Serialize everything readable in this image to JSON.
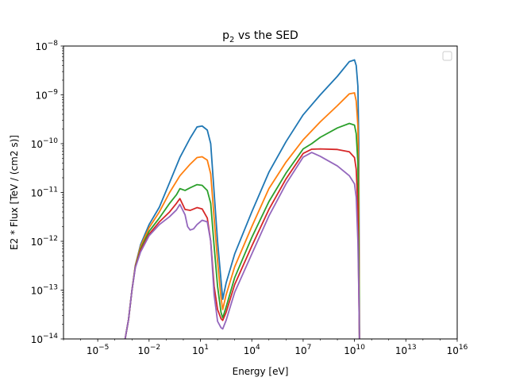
{
  "chart_data": {
    "type": "line",
    "title_main": "p",
    "title_sub": "2",
    "title_rest": " vs the SED",
    "xlabel": "Energy [eV]",
    "ylabel": "E2 * Flux [TeV / (cm2 s)]",
    "x_scale": "log",
    "y_scale": "log",
    "xlim": [
      1e-07,
      1e+16
    ],
    "ylim": [
      1e-14,
      1e-08
    ],
    "x_tick_exponents": [
      -5,
      -2,
      1,
      4,
      7,
      10,
      13,
      16
    ],
    "y_tick_exponents": [
      -14,
      -13,
      -12,
      -11,
      -10,
      -9,
      -8
    ],
    "grid": false,
    "legend": "top-right (empty box)",
    "series": [
      {
        "color": "#1f77b4",
        "points": [
          [
            0.000398,
            1e-14
          ],
          [
            0.000631,
            2.5e-14
          ],
          [
            0.001,
            1e-13
          ],
          [
            0.00158,
            3.2e-13
          ],
          [
            0.00316,
            8.5e-13
          ],
          [
            0.01,
            2.2e-12
          ],
          [
            0.0398,
            5e-12
          ],
          [
            0.158,
            1.6e-11
          ],
          [
            0.631,
            5.2e-11
          ],
          [
            2.51,
            1.3e-10
          ],
          [
            6.31,
            2.2e-10
          ],
          [
            12.6,
            2.3e-10
          ],
          [
            25.1,
            1.9e-10
          ],
          [
            39.8,
            1e-10
          ],
          [
            63.1,
            1e-11
          ],
          [
            100,
            1e-12
          ],
          [
            159,
            1.6e-13
          ],
          [
            200,
            6.5e-14
          ],
          [
            316,
            1.4e-13
          ],
          [
            1000,
            5.5e-13
          ],
          [
            10000,
            4e-12
          ],
          [
            100000,
            2.6e-11
          ],
          [
            1000000,
            1.1e-10
          ],
          [
            10000000,
            3.9e-10
          ],
          [
            100000000,
            1e-09
          ],
          [
            1000000000,
            2.4e-09
          ],
          [
            5010000000,
            4.8e-09
          ],
          [
            10000000000,
            5.2e-09
          ],
          [
            12600000000,
            4e-09
          ],
          [
            15800000000,
            1.5e-09
          ],
          [
            17800000000,
            1e-10
          ],
          [
            19500000000,
            1e-14
          ]
        ]
      },
      {
        "color": "#ff7f0e",
        "points": [
          [
            0.000398,
            1e-14
          ],
          [
            0.000631,
            2.5e-14
          ],
          [
            0.001,
            1e-13
          ],
          [
            0.00158,
            3.2e-13
          ],
          [
            0.00316,
            7.8e-13
          ],
          [
            0.01,
            1.9e-12
          ],
          [
            0.0398,
            4e-12
          ],
          [
            0.158,
            1e-11
          ],
          [
            0.631,
            2.2e-11
          ],
          [
            2.51,
            3.8e-11
          ],
          [
            6.31,
            5.2e-11
          ],
          [
            12.6,
            5.4e-11
          ],
          [
            25.1,
            4.6e-11
          ],
          [
            39.8,
            2.4e-11
          ],
          [
            63.1,
            3e-12
          ],
          [
            100,
            4e-13
          ],
          [
            159,
            7e-14
          ],
          [
            200,
            4e-14
          ],
          [
            316,
            8e-14
          ],
          [
            1000,
            3e-13
          ],
          [
            10000,
            2e-12
          ],
          [
            100000,
            1.2e-11
          ],
          [
            1000000,
            4.2e-11
          ],
          [
            10000000,
            1.2e-10
          ],
          [
            100000000,
            2.8e-10
          ],
          [
            1000000000,
            6e-10
          ],
          [
            5010000000,
            1.05e-09
          ],
          [
            10000000000,
            1.1e-09
          ],
          [
            12600000000,
            7.5e-10
          ],
          [
            15800000000,
            2.3e-10
          ],
          [
            17800000000,
            1e-11
          ],
          [
            19500000000,
            1e-14
          ]
        ]
      },
      {
        "color": "#2ca02c",
        "points": [
          [
            0.000398,
            1e-14
          ],
          [
            0.000631,
            2.5e-14
          ],
          [
            0.001,
            1e-13
          ],
          [
            0.00158,
            3.1e-13
          ],
          [
            0.00316,
            7e-13
          ],
          [
            0.01,
            1.6e-12
          ],
          [
            0.0398,
            3e-12
          ],
          [
            0.158,
            6e-12
          ],
          [
            0.398,
            9e-12
          ],
          [
            0.631,
            1.2e-11
          ],
          [
            1.26,
            1.1e-11
          ],
          [
            2.51,
            1.25e-11
          ],
          [
            6.31,
            1.45e-11
          ],
          [
            12.6,
            1.4e-11
          ],
          [
            25.1,
            1.1e-11
          ],
          [
            39.8,
            6e-12
          ],
          [
            63.1,
            8e-13
          ],
          [
            100,
            1.2e-13
          ],
          [
            159,
            3.5e-14
          ],
          [
            200,
            2.7e-14
          ],
          [
            316,
            4.5e-14
          ],
          [
            1000,
            1.8e-13
          ],
          [
            10000,
            1.2e-12
          ],
          [
            100000,
            6.5e-12
          ],
          [
            1000000,
            2.5e-11
          ],
          [
            10000000,
            7.8e-11
          ],
          [
            31600000,
            1e-10
          ],
          [
            100000000,
            1.35e-10
          ],
          [
            1000000000,
            2.1e-10
          ],
          [
            5010000000,
            2.6e-10
          ],
          [
            10000000000,
            2.4e-10
          ],
          [
            12600000000,
            1.6e-10
          ],
          [
            15800000000,
            4e-11
          ],
          [
            17800000000,
            1e-12
          ],
          [
            19500000000,
            1e-14
          ]
        ]
      },
      {
        "color": "#d62728",
        "points": [
          [
            0.000398,
            1e-14
          ],
          [
            0.000631,
            2.5e-14
          ],
          [
            0.001,
            1e-13
          ],
          [
            0.00158,
            3e-13
          ],
          [
            0.00316,
            6.5e-13
          ],
          [
            0.01,
            1.4e-12
          ],
          [
            0.0398,
            2.5e-12
          ],
          [
            0.158,
            4e-12
          ],
          [
            0.398,
            6e-12
          ],
          [
            0.631,
            7.5e-12
          ],
          [
            1.26,
            4.5e-12
          ],
          [
            2.51,
            4.3e-12
          ],
          [
            6.31,
            4.9e-12
          ],
          [
            12.6,
            4.6e-12
          ],
          [
            25.1,
            3e-12
          ],
          [
            39.8,
            1e-12
          ],
          [
            63.1,
            1.2e-13
          ],
          [
            100,
            4e-14
          ],
          [
            159,
            2.6e-14
          ],
          [
            200,
            2.4e-14
          ],
          [
            316,
            3.5e-14
          ],
          [
            1000,
            1.3e-13
          ],
          [
            10000,
            8e-13
          ],
          [
            100000,
            4.5e-12
          ],
          [
            1000000,
            1.9e-11
          ],
          [
            10000000,
            6.3e-11
          ],
          [
            31600000,
            7.7e-11
          ],
          [
            100000000,
            7.8e-11
          ],
          [
            1000000000,
            7.6e-11
          ],
          [
            5010000000,
            6.8e-11
          ],
          [
            10000000000,
            5.2e-11
          ],
          [
            12600000000,
            3e-11
          ],
          [
            15800000000,
            5e-12
          ],
          [
            17800000000,
            1e-13
          ],
          [
            19500000000,
            1e-14
          ]
        ]
      },
      {
        "color": "#9467bd",
        "points": [
          [
            0.000398,
            1e-14
          ],
          [
            0.000631,
            2.5e-14
          ],
          [
            0.001,
            1e-13
          ],
          [
            0.00158,
            2.9e-13
          ],
          [
            0.00316,
            6e-13
          ],
          [
            0.01,
            1.3e-12
          ],
          [
            0.0398,
            2.2e-12
          ],
          [
            0.158,
            3.2e-12
          ],
          [
            0.398,
            4.4e-12
          ],
          [
            0.631,
            5.7e-12
          ],
          [
            1.26,
            3.5e-12
          ],
          [
            1.78,
            2e-12
          ],
          [
            2.51,
            1.7e-12
          ],
          [
            3.98,
            1.8e-12
          ],
          [
            6.31,
            2.2e-12
          ],
          [
            12.6,
            2.7e-12
          ],
          [
            25.1,
            2.5e-12
          ],
          [
            39.8,
            1e-12
          ],
          [
            63.1,
            8e-14
          ],
          [
            100,
            2.3e-14
          ],
          [
            159,
            1.7e-14
          ],
          [
            200,
            1.6e-14
          ],
          [
            316,
            2.4e-14
          ],
          [
            1000,
            9e-14
          ],
          [
            10000,
            5.5e-13
          ],
          [
            100000,
            3.3e-12
          ],
          [
            1000000,
            1.5e-11
          ],
          [
            10000000,
            5.3e-11
          ],
          [
            31600000,
            6.6e-11
          ],
          [
            100000000,
            5.5e-11
          ],
          [
            1000000000,
            3.5e-11
          ],
          [
            5010000000,
            2.2e-11
          ],
          [
            10000000000,
            1.5e-11
          ],
          [
            12600000000,
            8e-12
          ],
          [
            15800000000,
            1e-12
          ],
          [
            17800000000,
            1e-13
          ],
          [
            19500000000,
            1e-14
          ]
        ]
      }
    ]
  }
}
